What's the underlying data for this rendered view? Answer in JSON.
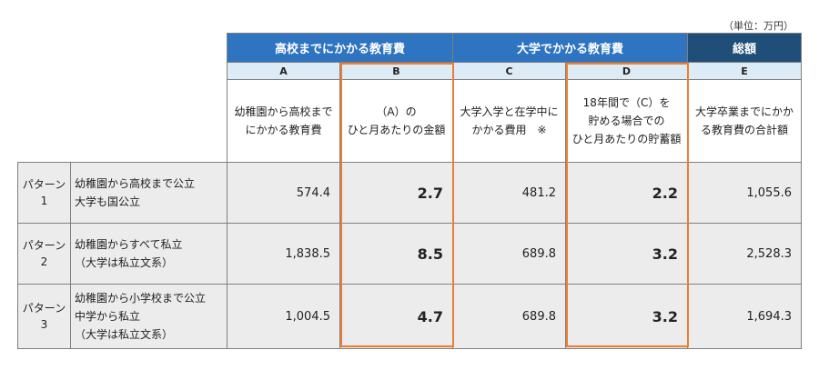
{
  "unit_note": "（単位：万円）",
  "groups": {
    "school": "高校までにかかる教育費",
    "university": "大学でかかる教育費",
    "total": "総額"
  },
  "letters": [
    "A",
    "B",
    "C",
    "D",
    "E"
  ],
  "descriptions": {
    "A": [
      "幼稚園から高校まで",
      "にかかる教育費"
    ],
    "B": [
      "（A）の",
      "ひと月あたりの金額"
    ],
    "C": [
      "大学入学と在学中に",
      "かかる費用　※"
    ],
    "D": [
      "18年間で（C）を",
      "貯める場合での",
      "ひと月あたりの貯蓄額"
    ],
    "E": [
      "大学卒業までにかか",
      "る教育費の合計額"
    ]
  },
  "rows": [
    {
      "label": [
        "パターン",
        "1"
      ],
      "desc": [
        "幼稚園から高校まで公立",
        "大学も国公立"
      ],
      "A": "574.4",
      "B": "2.7",
      "C": "481.2",
      "D": "2.2",
      "E": "1,055.6"
    },
    {
      "label": [
        "パターン",
        "2"
      ],
      "desc": [
        "幼稚園からすべて私立",
        "（大学は私立文系）"
      ],
      "A": "1,838.5",
      "B": "8.5",
      "C": "689.8",
      "D": "3.2",
      "E": "2,528.3"
    },
    {
      "label": [
        "パターン",
        "3"
      ],
      "desc": [
        "幼稚園から小学校まで公立",
        "中学から私立",
        "（大学は私立文系）"
      ],
      "A": "1,004.5",
      "B": "4.7",
      "C": "689.8",
      "D": "3.2",
      "E": "1,694.3"
    }
  ],
  "colors": {
    "group_blue": "#2e74c0",
    "group_navy": "#1f4e79",
    "letter_bg": "#ddebf7",
    "row_bg": "#ececec",
    "highlight": "#ed7d31"
  }
}
